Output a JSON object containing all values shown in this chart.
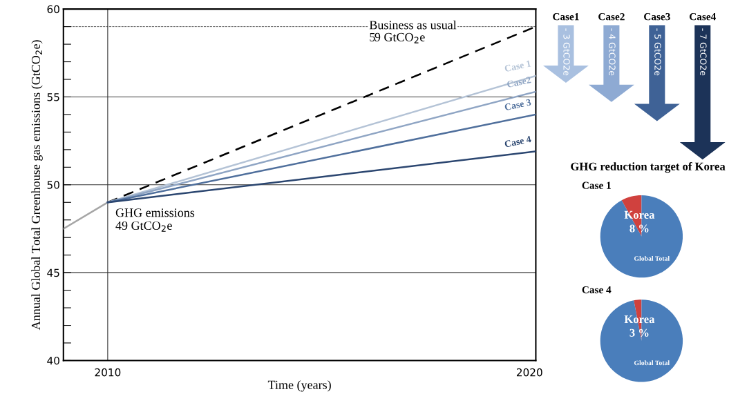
{
  "chart_data": [
    {
      "type": "line",
      "xlabel": "Time (years)",
      "ylabel": "Annual Global Total Greenhouse gas emissions (GtCO$_{2}$e)",
      "xlim": [
        2008.95,
        2020.15
      ],
      "xticks": [
        2010,
        2020
      ],
      "ylim": [
        40,
        60
      ],
      "yticks": [
        40,
        {
          "value": 41,
          "label": null
        },
        {
          "value": 42,
          "label": null
        },
        {
          "value": 43,
          "label": null
        },
        {
          "value": 44,
          "label": null
        },
        45,
        {
          "value": 46,
          "label": null
        },
        {
          "value": 47,
          "label": null
        },
        {
          "value": 48,
          "label": null
        },
        {
          "value": 49,
          "label": null
        },
        50,
        {
          "value": 51,
          "label": null
        },
        {
          "value": 52,
          "label": null
        },
        {
          "value": 53,
          "label": null
        },
        {
          "value": 54,
          "label": null
        },
        55,
        {
          "value": 56,
          "label": null
        },
        {
          "value": 57,
          "label": null
        },
        {
          "value": 58,
          "label": null
        },
        {
          "value": 59,
          "label": null
        },
        60
      ],
      "series": [
        {
          "color": "#a6a6a6",
          "x": [
            2008.95,
            2010
          ],
          "values": [
            47.5,
            49
          ]
        },
        {
          "color": "#000000",
          "line_style": "dashed",
          "x": [
            2010,
            2020.15
          ],
          "values": [
            49,
            59
          ]
        },
        {
          "name": "Case 1",
          "color": "#b4c3d6",
          "x": [
            2010,
            2020.15
          ],
          "values": [
            49,
            56.2
          ]
        },
        {
          "name": "Case2",
          "color": "#8fa5c4",
          "x": [
            2010,
            2020.15
          ],
          "values": [
            49,
            55.3
          ]
        },
        {
          "name": "Case 3",
          "color": "#4f6f9c",
          "x": [
            2010,
            2020.15
          ],
          "values": [
            49,
            54.0
          ]
        },
        {
          "name": "Case 4",
          "color": "#2b4670",
          "x": [
            2010,
            2020.15
          ],
          "values": [
            49,
            51.9
          ]
        }
      ],
      "ref_lines": [
        {
          "axis": "x",
          "value": 2010,
          "color": "#333333",
          "line_style": "solid"
        },
        {
          "axis": "y",
          "value": 45,
          "color": "#333333",
          "line_style": "solid"
        },
        {
          "axis": "y",
          "value": 50,
          "color": "#333333",
          "line_style": "solid"
        },
        {
          "axis": "y",
          "value": 55,
          "color": "#333333",
          "line_style": "solid"
        },
        {
          "axis": "y",
          "value": 59,
          "color": "#333333",
          "line_style": "dashed"
        }
      ],
      "annotations": [
        {
          "text": "Business as usual\n59 GtCO$_{2}$e",
          "x": 2016.2,
          "y": 59
        },
        {
          "text": "GHG emissions\n49 GtCO$_{2}$e",
          "x": 2010,
          "y": 49
        }
      ]
    },
    {
      "type": "other",
      "categories": [
        "Case1",
        "Case2",
        "Case3",
        "Case4"
      ],
      "values": [
        -3,
        -4,
        -5,
        -7
      ],
      "colors": [
        "#a9c0e0",
        "#8eaad3",
        "#3f6296",
        "#1c3358"
      ],
      "value_labels": [
        "- 3 GtCO2e",
        "- 4 GtCO2e",
        "- 5 GtCO2e",
        "- 7 GtCO2e"
      ]
    },
    {
      "type": "pie",
      "title": "GHG reduction target of Korea",
      "subtitle": "Case 1",
      "categories": [
        "Korea",
        "Global Total"
      ],
      "values": [
        8,
        92
      ],
      "colors": [
        "#d0413e",
        "#4a7ebb"
      ],
      "value_labels": [
        "8 %",
        null
      ]
    },
    {
      "type": "pie",
      "title": "Case 4",
      "categories": [
        "Korea",
        "Global Total"
      ],
      "values": [
        3,
        97
      ],
      "colors": [
        "#d0413e",
        "#4a7ebb"
      ],
      "value_labels": [
        "3 %",
        null
      ]
    }
  ]
}
